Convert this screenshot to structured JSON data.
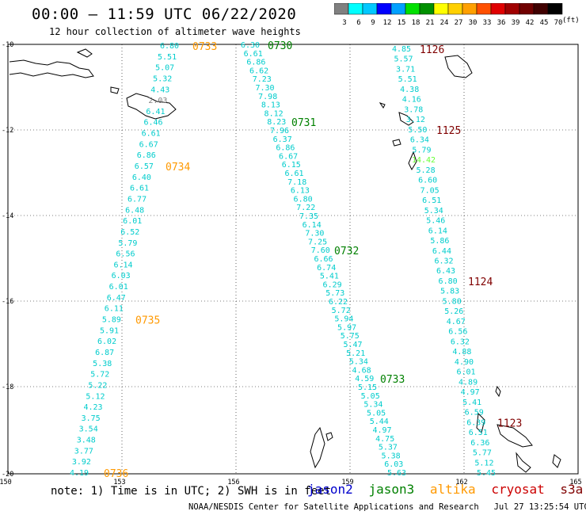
{
  "header": {
    "title": "00:00 — 11:59 UTC 06/22/2020",
    "subtitle": "12 hour collection of altimeter wave heights"
  },
  "scale": {
    "labels": [
      "3",
      "6",
      "9",
      "12",
      "15",
      "18",
      "21",
      "24",
      "27",
      "30",
      "33",
      "36",
      "39",
      "42",
      "45",
      "70"
    ],
    "unit": "(ft)",
    "colors": [
      "#808080",
      "#00ffff",
      "#00c8ff",
      "#0000ff",
      "#00a0ff",
      "#00e000",
      "#009000",
      "#ffff00",
      "#ffd000",
      "#ffa000",
      "#ff5000",
      "#e00000",
      "#a00000",
      "#700000",
      "#400000",
      "#000000"
    ]
  },
  "axes": {
    "x_ticks": [
      "150",
      "153",
      "156",
      "159",
      "162",
      "165"
    ],
    "y_ticks": [
      "-10",
      "-12",
      "-14",
      "-16",
      "-18",
      "-20"
    ]
  },
  "note": "note: 1) Time is in UTC; 2) SWH is in feet",
  "satellites": [
    {
      "name": "jason2",
      "color": "#0000cc"
    },
    {
      "name": "jason3",
      "color": "#008000"
    },
    {
      "name": "altika",
      "color": "#ff9900"
    },
    {
      "name": "cryosat",
      "color": "#cc0000"
    },
    {
      "name": "s3a",
      "color": "#800000"
    }
  ],
  "footer": "NOAA/NESDIS Center for Satellite Applications and Research   Jul 27 13:25:54 UTC 2020",
  "tracks": [
    {
      "id": "track1",
      "color": "#00cccc",
      "values": [
        "6.80",
        "5.51",
        "5.07",
        "5.32",
        "4.43",
        "2.03",
        "6.41",
        "6.46",
        "6.61",
        "6.67",
        "6.86",
        "6.57",
        "6.40",
        "6.61",
        "6.77",
        "6.48",
        "6.01",
        "6.52",
        "5.79",
        "6.56",
        "6.14",
        "6.03",
        "6.01",
        "6.47",
        "6.11",
        "5.89",
        "5.91",
        "6.02",
        "6.87",
        "5.38",
        "5.72",
        "5.22",
        "5.12",
        "4.23",
        "3.75",
        "3.54",
        "3.48",
        "3.77",
        "3.92",
        "4.19"
      ],
      "times": [
        {
          "t": "0733",
          "color": "#ff9900",
          "i": 0
        },
        {
          "t": "0734",
          "color": "#ff9900",
          "i": 11
        },
        {
          "t": "0735",
          "color": "#ff9900",
          "i": 25
        },
        {
          "t": "0736",
          "color": "#ff9900",
          "i": 39
        }
      ]
    },
    {
      "id": "track2",
      "color": "#00cccc",
      "values": [
        "6.30",
        "6.61",
        "6.86",
        "6.62",
        "7.23",
        "7.30",
        "7.98",
        "8.13",
        "8.12",
        "8.23",
        "7.96",
        "6.37",
        "6.86",
        "6.67",
        "6.15",
        "6.61",
        "7.18",
        "6.13",
        "6.80",
        "7.22",
        "7.35",
        "6.14",
        "7.30",
        "7.25",
        "7.60",
        "6.66",
        "6.74",
        "5.41",
        "6.29",
        "5.73",
        "6.22",
        "5.72",
        "5.94",
        "5.97",
        "5.75",
        "5.47",
        "5.21",
        "5.34",
        "4.68",
        "4.59",
        "5.15",
        "5.05",
        "5.34",
        "5.05",
        "5.44",
        "4.97",
        "4.75",
        "5.37",
        "5.38",
        "6.03",
        "5.63"
      ],
      "times": [
        {
          "t": "0730",
          "color": "#008000",
          "i": 0
        },
        {
          "t": "0731",
          "color": "#008000",
          "i": 9
        },
        {
          "t": "0732",
          "color": "#008000",
          "i": 24
        },
        {
          "t": "0733",
          "color": "#008000",
          "i": 39
        }
      ]
    },
    {
      "id": "track3",
      "color": "#00cccc",
      "values": [
        "4.85",
        "5.57",
        "3.71",
        "5.51",
        "4.38",
        "4.16",
        "3.78",
        "3.12",
        "5.50",
        "6.34",
        "5.79",
        "14.42",
        "5.28",
        "6.60",
        "7.05",
        "6.51",
        "5.34",
        "5.46",
        "6.14",
        "5.86",
        "6.44",
        "6.32",
        "6.43",
        "6.80",
        "5.83",
        "5.80",
        "5.26",
        "4.67",
        "6.56",
        "6.32",
        "4.88",
        "4.90",
        "6.01",
        "4.89",
        "4.97",
        "5.41",
        "6.59",
        "6.39",
        "6.51",
        "6.36",
        "5.77",
        "5.12",
        "5.45"
      ],
      "times": [
        {
          "t": "1126",
          "color": "#800000",
          "i": 0
        },
        {
          "t": "1125",
          "color": "#800000",
          "i": 8
        },
        {
          "t": "1124",
          "color": "#800000",
          "i": 23
        },
        {
          "t": "1123",
          "color": "#800000",
          "i": 37
        }
      ]
    }
  ]
}
